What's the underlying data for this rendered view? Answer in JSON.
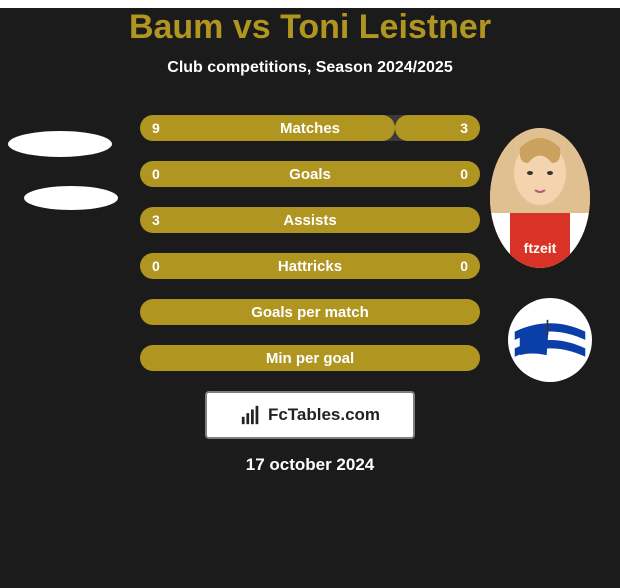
{
  "background_color": "#1b1b1b",
  "title_color": "#b09521",
  "text_color": "#ffffff",
  "header": {
    "title": "Baum vs Toni Leistner",
    "subtitle": "Club competitions, Season 2024/2025"
  },
  "players": {
    "left": {
      "name": "Baum",
      "avatar_bg": "#e8e8e8"
    },
    "right": {
      "name": "Toni Leistner"
    }
  },
  "stats": {
    "bar_bg": "#b09521",
    "bar_empty_bg": "#3a3a3a",
    "rows": [
      {
        "label": "Matches",
        "left": "9",
        "right": "3",
        "left_pct": 75,
        "right_pct": 25
      },
      {
        "label": "Goals",
        "left": "0",
        "right": "0",
        "left_pct": 50,
        "right_pct": 50,
        "empty": true
      },
      {
        "label": "Assists",
        "left": "3",
        "right": "",
        "left_pct": 100,
        "right_pct": 0
      },
      {
        "label": "Hattricks",
        "left": "0",
        "right": "0",
        "left_pct": 50,
        "right_pct": 50,
        "empty": true
      },
      {
        "label": "Goals per match",
        "left": "",
        "right": "",
        "left_pct": 100,
        "right_pct": 0
      },
      {
        "label": "Min per goal",
        "left": "",
        "right": "",
        "left_pct": 100,
        "right_pct": 0
      }
    ]
  },
  "watermark": {
    "text": "FcTables.com"
  },
  "date": "17 october 2024",
  "club_right": {
    "name": "Hertha BSC",
    "flag_blue": "#0a3ea8",
    "flag_white": "#ffffff"
  }
}
